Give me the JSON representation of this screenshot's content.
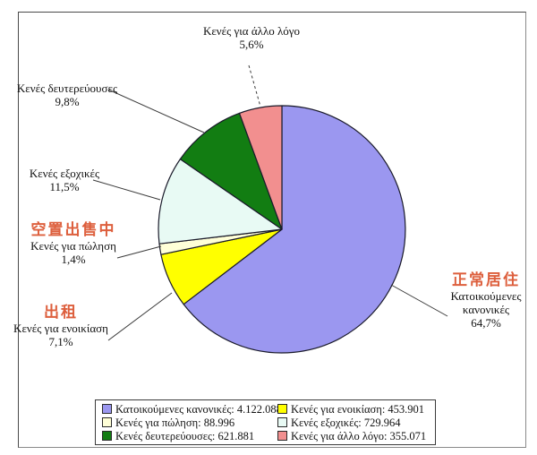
{
  "chart_data": {
    "type": "pie",
    "title": "",
    "legend_position": "bottom",
    "direction": "clockwise",
    "start_angle_deg": 0,
    "stroke_color": "#1a1a2a",
    "annotation_color": "#dd5f3d",
    "slices": [
      {
        "label": "Κατοικούμενες κανονικές",
        "label_line1": "Κατοικούμενες",
        "label_line2": "κανονικές",
        "cn": "正常居住",
        "pct": 64.7,
        "pct_label": "64,7%",
        "count": "4.122.088",
        "legend_text": "Κατοικούμενες κανονικές: 4.122.088",
        "color": "#9b97f0"
      },
      {
        "label": "Κενές για ενοικίαση",
        "cn": "出租",
        "pct": 7.1,
        "pct_label": "7,1%",
        "count": "453.901",
        "legend_text": "Κενές για ενοικίαση: 453.901",
        "color": "#ffff00"
      },
      {
        "label": "Κενές για πώληση",
        "cn": "空置出售中",
        "pct": 1.4,
        "pct_label": "1,4%",
        "count": "88.996",
        "legend_text": "Κενές για πώληση: 88.996",
        "color": "#ffffd7"
      },
      {
        "label": "Κενές εξοχικές",
        "pct": 11.5,
        "pct_label": "11,5%",
        "count": "729.964",
        "legend_text": "Κενές εξοχικές: 729.964",
        "color": "#e8faf4"
      },
      {
        "label": "Κενές δευτερεύουσες",
        "pct": 9.8,
        "pct_label": "9,8%",
        "count": "621.881",
        "legend_text": "Κενές δευτερεύουσες: 621.881",
        "color": "#127d12"
      },
      {
        "label": "Κενές για άλλο λόγο",
        "pct": 5.6,
        "pct_label": "5,6%",
        "count": "355.071",
        "legend_text": "Κενές για άλλο λόγο: 355.071",
        "color": "#f28f8f"
      }
    ]
  }
}
